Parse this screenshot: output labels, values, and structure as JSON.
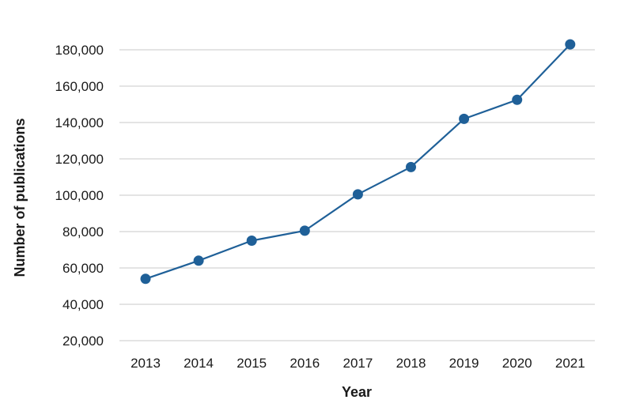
{
  "chart_data": {
    "type": "line",
    "title": "",
    "xlabel": "Year",
    "ylabel": "Number of publications",
    "categories": [
      "2013",
      "2014",
      "2015",
      "2016",
      "2017",
      "2018",
      "2019",
      "2020",
      "2021"
    ],
    "series": [
      {
        "values": [
          54000,
          64000,
          75000,
          80500,
          100500,
          115500,
          142000,
          152500,
          183000
        ]
      }
    ],
    "ylim": [
      20000,
      180000
    ],
    "yticks": [
      20000,
      40000,
      60000,
      80000,
      100000,
      120000,
      140000,
      160000,
      180000
    ],
    "ytick_labels": [
      "20,000",
      "40,000",
      "60,000",
      "80,000",
      "100,000",
      "120,000",
      "140,000",
      "160,000",
      "180,000"
    ],
    "grid": "horizontal",
    "legend": "none",
    "colors": {
      "series": "#1f6098",
      "grid": "#c9c9c9",
      "text": "#1a1a1a"
    }
  }
}
